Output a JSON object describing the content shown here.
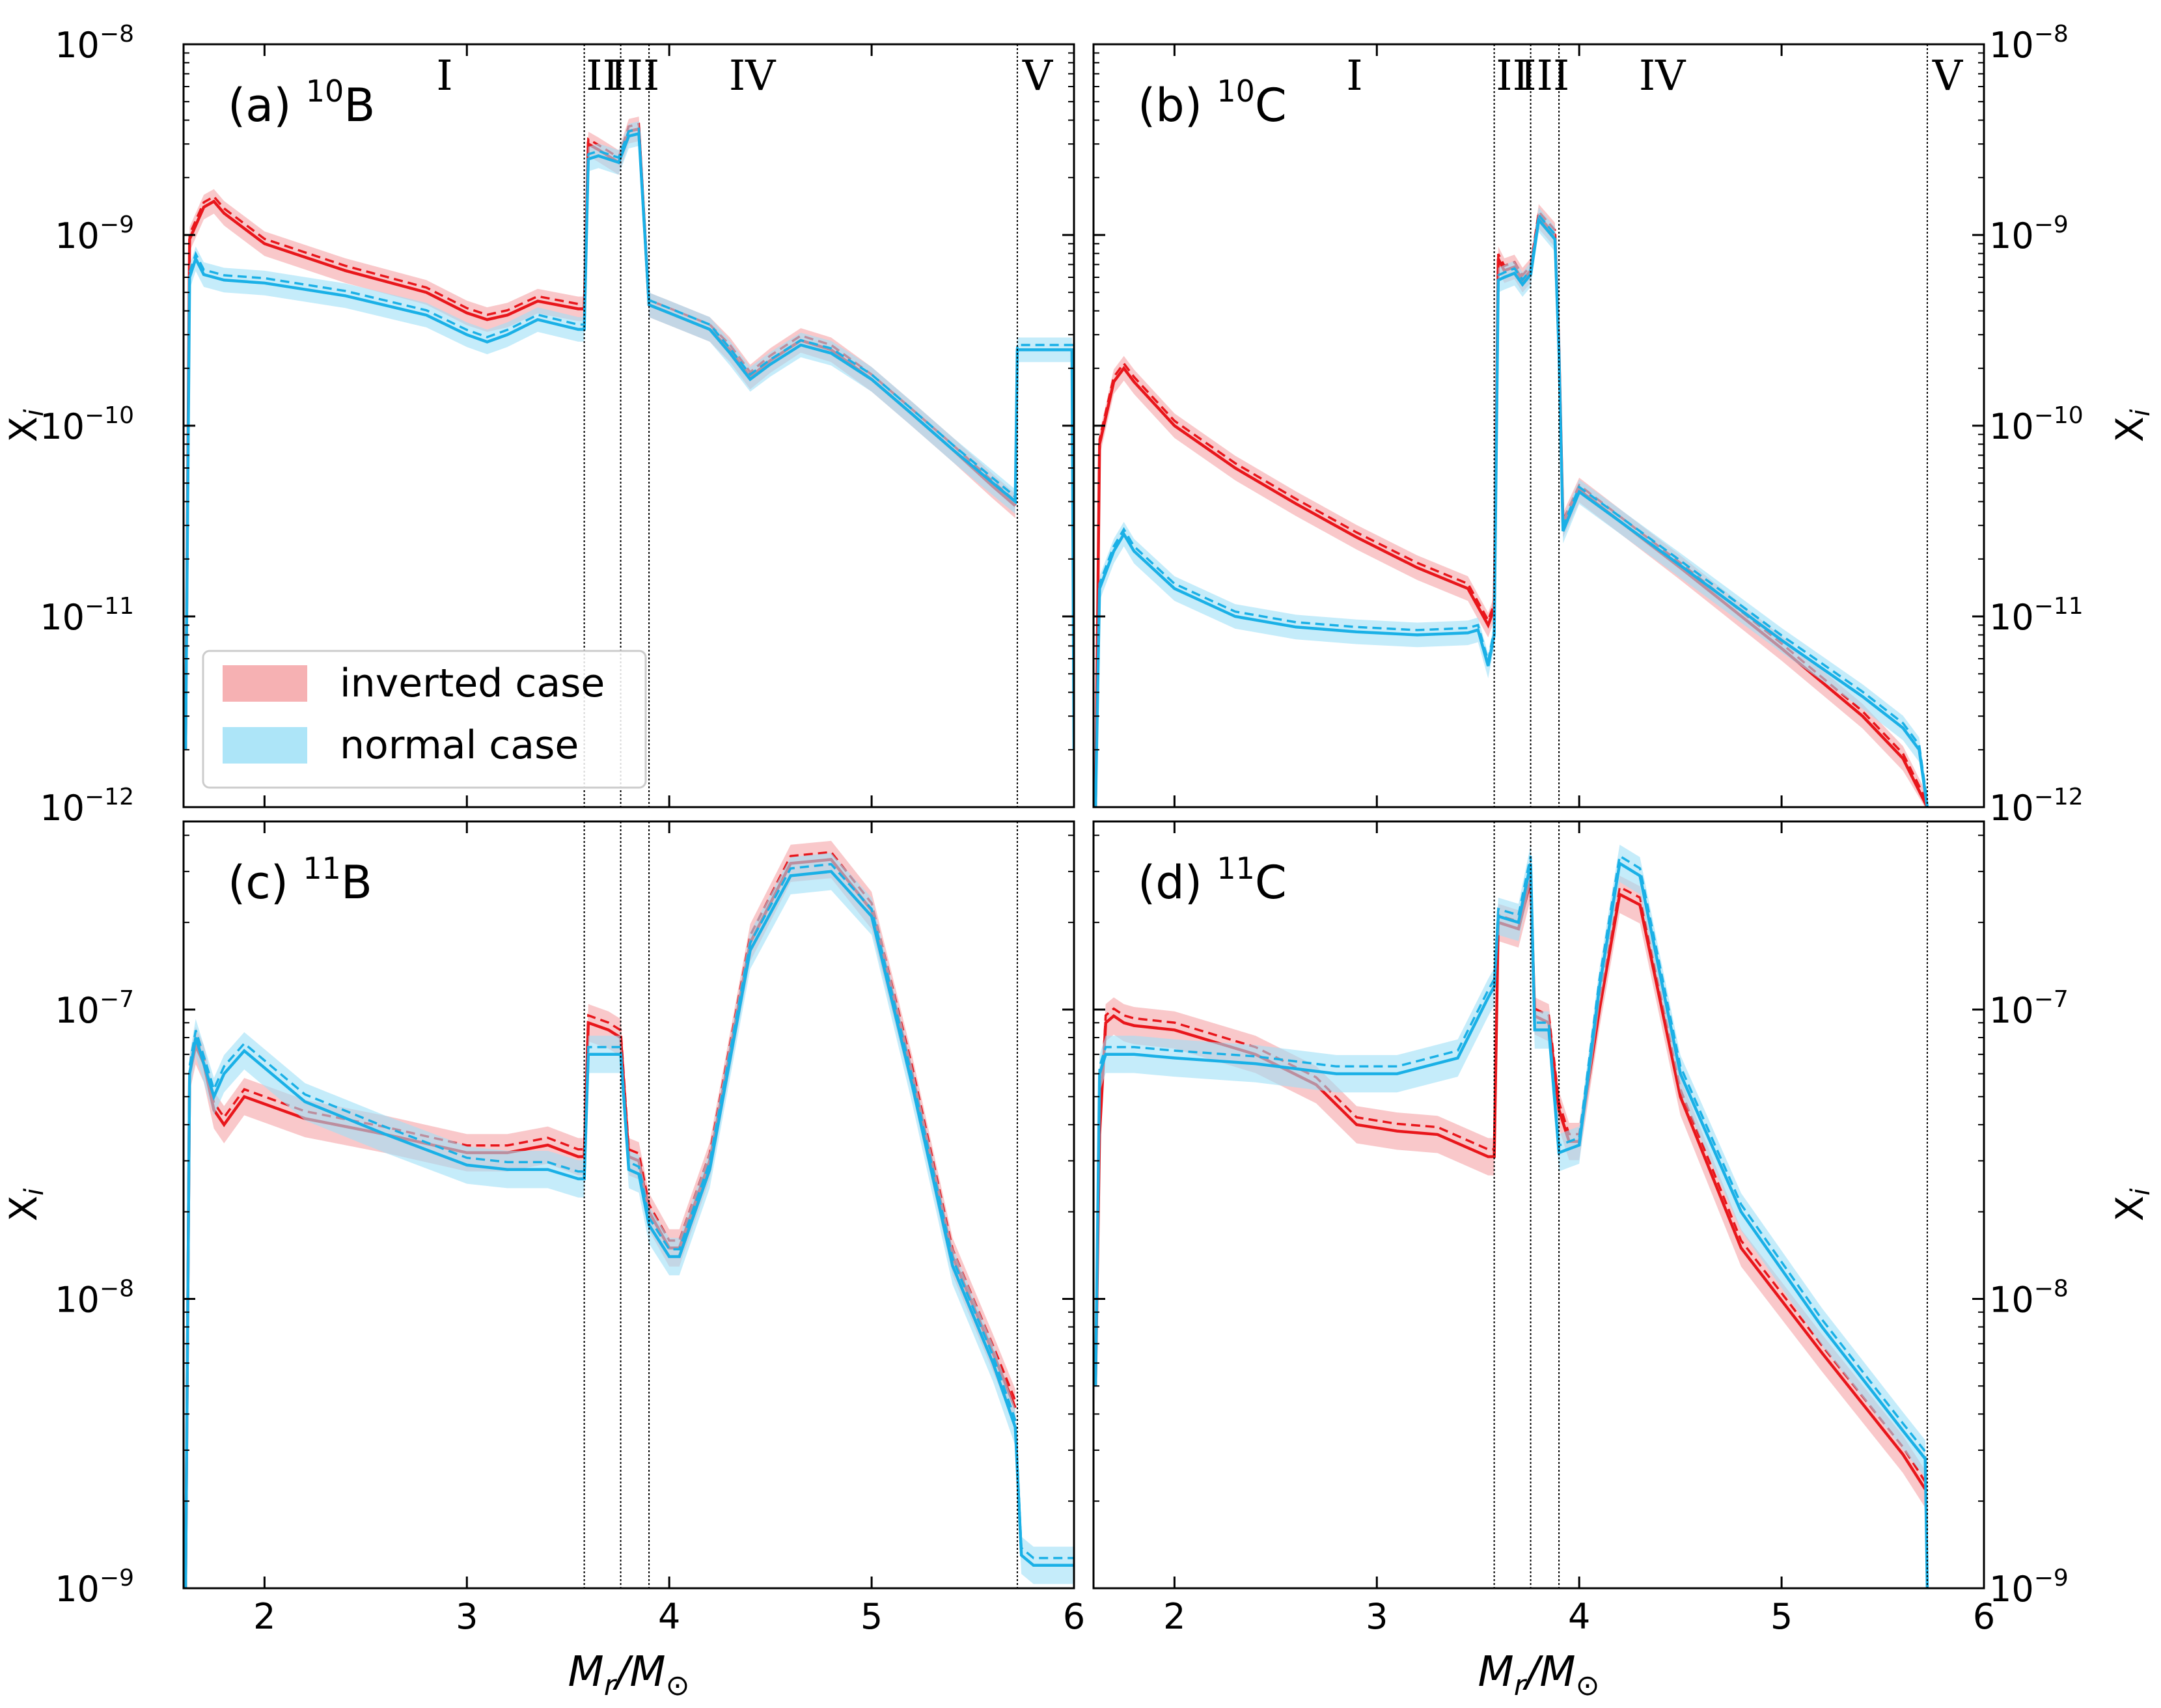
{
  "figure": {
    "xlabel": "M_r/M_⊙",
    "ylabel": "X_i",
    "legend": [
      {
        "label": "inverted case",
        "color": "#e8161b",
        "band": "#f5a3a6"
      },
      {
        "label": "normal case",
        "color": "#1ab0e6",
        "band": "#9fe0f7"
      }
    ],
    "region_labels": [
      "I",
      "II",
      "III",
      "IV",
      "V"
    ],
    "boundaries": [
      3.58,
      3.76,
      3.9,
      5.72
    ],
    "xticks": [
      2,
      3,
      4,
      5,
      6
    ]
  },
  "chart_data": [
    {
      "type": "line",
      "panel_label": "(a)",
      "isotope_mass": "10",
      "isotope_symbol": "B",
      "xlim": [
        1.6,
        6
      ],
      "ylim_log10": [
        -12,
        -8
      ],
      "yscale": "log",
      "yticks": [
        {
          "base": "10",
          "exp": "−8"
        },
        {
          "base": "10",
          "exp": "−9"
        },
        {
          "base": "10",
          "exp": "−10"
        },
        {
          "base": "10",
          "exp": "−11"
        },
        {
          "base": "10",
          "exp": "−12"
        }
      ],
      "legend": "lower-left",
      "series": [
        {
          "name": "inverted case",
          "x": [
            1.61,
            1.63,
            1.7,
            1.75,
            1.8,
            2.0,
            2.4,
            2.8,
            3.0,
            3.1,
            3.2,
            3.35,
            3.55,
            3.58,
            3.6,
            3.65,
            3.75,
            3.8,
            3.85,
            3.9,
            4.0,
            4.2,
            4.3,
            4.4,
            4.5,
            4.65,
            4.8,
            5.0,
            5.2,
            5.4,
            5.6,
            5.71
          ],
          "y": [
            2e-12,
            9.5e-10,
            1.4e-09,
            1.5e-09,
            1.3e-09,
            9e-10,
            6.5e-10,
            5e-10,
            3.9e-10,
            3.6e-10,
            3.8e-10,
            4.5e-10,
            4.1e-10,
            4.1e-10,
            3e-09,
            2.8e-09,
            2.4e-09,
            3.5e-09,
            3.6e-09,
            4.3e-10,
            3.9e-10,
            3.2e-10,
            2.5e-10,
            1.8e-10,
            2.2e-10,
            2.8e-10,
            2.5e-10,
            1.75e-10,
            1.15e-10,
            7.5e-11,
            4.8e-11,
            3.8e-11
          ]
        },
        {
          "name": "normal case",
          "x": [
            1.61,
            1.63,
            1.66,
            1.7,
            1.8,
            2.0,
            2.4,
            2.8,
            3.0,
            3.1,
            3.2,
            3.35,
            3.55,
            3.58,
            3.6,
            3.65,
            3.75,
            3.8,
            3.85,
            3.9,
            4.0,
            4.2,
            4.3,
            4.4,
            4.5,
            4.65,
            4.8,
            5.0,
            5.2,
            5.4,
            5.6,
            5.71,
            5.72,
            5.74,
            5.95,
            5.99,
            6.0
          ],
          "y": [
            2e-12,
            6e-10,
            7.5e-10,
            6.2e-10,
            5.8e-10,
            5.6e-10,
            4.8e-10,
            3.8e-10,
            3e-10,
            2.75e-10,
            3e-10,
            3.6e-10,
            3.2e-10,
            3.2e-10,
            2.5e-09,
            2.6e-09,
            2.4e-09,
            3.3e-09,
            3.4e-09,
            4.3e-10,
            3.9e-10,
            3.2e-10,
            2.4e-10,
            1.75e-10,
            2.1e-10,
            2.65e-10,
            2.4e-10,
            1.75e-10,
            1.15e-10,
            7.5e-11,
            5e-11,
            4e-11,
            2.5e-10,
            2.5e-10,
            2.5e-10,
            2.5e-10,
            2e-12
          ]
        }
      ]
    },
    {
      "type": "line",
      "panel_label": "(b)",
      "isotope_mass": "10",
      "isotope_symbol": "C",
      "xlim": [
        1.6,
        6
      ],
      "ylim_log10": [
        -12,
        -8
      ],
      "yscale": "log",
      "yticks": [
        {
          "base": "10",
          "exp": "−8"
        },
        {
          "base": "10",
          "exp": "−9"
        },
        {
          "base": "10",
          "exp": "−10"
        },
        {
          "base": "10",
          "exp": "−11"
        },
        {
          "base": "10",
          "exp": "−12"
        }
      ],
      "series": [
        {
          "name": "inverted case",
          "x": [
            1.61,
            1.63,
            1.7,
            1.75,
            1.8,
            2.0,
            2.3,
            2.6,
            2.9,
            3.2,
            3.45,
            3.55,
            3.58,
            3.6,
            3.63,
            3.68,
            3.72,
            3.76,
            3.8,
            3.83,
            3.88,
            3.9,
            3.92,
            4.0,
            4.5,
            5.0,
            5.4,
            5.6,
            5.72
          ],
          "y": [
            1e-12,
            8e-11,
            1.7e-10,
            2e-10,
            1.7e-10,
            1e-10,
            6e-11,
            3.9e-11,
            2.6e-11,
            1.8e-11,
            1.4e-11,
            9e-12,
            1.1e-11,
            7.5e-10,
            6.5e-10,
            6.8e-10,
            5.8e-10,
            6.5e-10,
            1.25e-09,
            1.15e-09,
            1e-09,
            2.5e-10,
            3e-11,
            4.6e-11,
            1.8e-11,
            6.8e-12,
            3e-12,
            1.8e-12,
            1e-12
          ]
        },
        {
          "name": "normal case",
          "x": [
            1.61,
            1.63,
            1.7,
            1.75,
            1.8,
            2.0,
            2.3,
            2.6,
            2.9,
            3.2,
            3.45,
            3.5,
            3.55,
            3.58,
            3.6,
            3.63,
            3.68,
            3.72,
            3.76,
            3.8,
            3.83,
            3.88,
            3.9,
            3.92,
            4.0,
            4.5,
            5.0,
            5.4,
            5.6,
            5.68,
            5.72
          ],
          "y": [
            1e-12,
            1.4e-11,
            2.2e-11,
            2.7e-11,
            2.2e-11,
            1.4e-11,
            1e-11,
            8.8e-12,
            8.3e-12,
            8e-12,
            8.2e-12,
            8.5e-12,
            5.5e-12,
            8e-12,
            5.8e-10,
            6e-10,
            6.3e-10,
            5.5e-10,
            6.2e-10,
            1.2e-09,
            1.1e-09,
            9.5e-10,
            2.4e-10,
            2.8e-11,
            4.5e-11,
            1.85e-11,
            7.5e-12,
            3.8e-12,
            2.6e-12,
            2e-12,
            1e-12
          ]
        }
      ]
    },
    {
      "type": "line",
      "panel_label": "(c)",
      "isotope_mass": "11",
      "isotope_symbol": "B",
      "xlim": [
        1.6,
        6
      ],
      "ylim_log10": [
        -9,
        -6.35
      ],
      "yscale": "log",
      "yticks": [
        {
          "base": "10",
          "exp": "−7"
        },
        {
          "base": "10",
          "exp": "−8"
        },
        {
          "base": "10",
          "exp": "−9"
        }
      ],
      "series": [
        {
          "name": "inverted case",
          "x": [
            1.61,
            1.63,
            1.66,
            1.7,
            1.75,
            1.8,
            1.9,
            2.2,
            2.6,
            3.0,
            3.2,
            3.4,
            3.55,
            3.58,
            3.6,
            3.7,
            3.76,
            3.8,
            3.85,
            3.9,
            4.0,
            4.05,
            4.2,
            4.4,
            4.6,
            4.8,
            5.0,
            5.2,
            5.4,
            5.6,
            5.71
          ],
          "y": [
            1e-09,
            6e-08,
            7.5e-08,
            6.5e-08,
            4.5e-08,
            4e-08,
            5e-08,
            4.2e-08,
            3.7e-08,
            3.2e-08,
            3.2e-08,
            3.4e-08,
            3.1e-08,
            3.1e-08,
            9e-08,
            8.5e-08,
            8e-08,
            3.1e-08,
            3e-08,
            2e-08,
            1.5e-08,
            1.5e-08,
            3e-08,
            1.7e-07,
            3.2e-07,
            3.3e-07,
            2.2e-07,
            6e-08,
            1.4e-08,
            6.5e-09,
            4.2e-09
          ]
        },
        {
          "name": "normal case",
          "x": [
            1.61,
            1.63,
            1.66,
            1.7,
            1.75,
            1.8,
            1.9,
            2.2,
            2.6,
            3.0,
            3.2,
            3.4,
            3.55,
            3.58,
            3.6,
            3.7,
            3.76,
            3.8,
            3.85,
            3.9,
            4.0,
            4.05,
            4.2,
            4.4,
            4.6,
            4.8,
            5.0,
            5.2,
            5.4,
            5.6,
            5.71,
            5.74,
            5.8,
            6.0
          ],
          "y": [
            1e-09,
            6e-08,
            8e-08,
            6.5e-08,
            5e-08,
            6e-08,
            7.2e-08,
            4.8e-08,
            3.7e-08,
            2.9e-08,
            2.8e-08,
            2.8e-08,
            2.6e-08,
            2.6e-08,
            7e-08,
            7e-08,
            7e-08,
            2.8e-08,
            2.7e-08,
            1.8e-08,
            1.4e-08,
            1.4e-08,
            2.8e-08,
            1.6e-07,
            2.9e-07,
            3e-07,
            2.1e-07,
            5.5e-08,
            1.3e-08,
            6e-09,
            3.6e-09,
            1.3e-09,
            1.2e-09,
            1.2e-09
          ]
        }
      ]
    },
    {
      "type": "line",
      "panel_label": "(d)",
      "isotope_mass": "11",
      "isotope_symbol": "C",
      "xlim": [
        1.6,
        6
      ],
      "ylim_log10": [
        -9,
        -6.35
      ],
      "yscale": "log",
      "yticks": [
        {
          "base": "10",
          "exp": "−7"
        },
        {
          "base": "10",
          "exp": "−8"
        },
        {
          "base": "10",
          "exp": "−9"
        }
      ],
      "series": [
        {
          "name": "inverted case",
          "x": [
            1.61,
            1.63,
            1.66,
            1.7,
            1.75,
            1.8,
            2.0,
            2.4,
            2.7,
            2.9,
            3.1,
            3.3,
            3.55,
            3.58,
            3.6,
            3.7,
            3.76,
            3.78,
            3.85,
            3.9,
            3.95,
            4.0,
            4.1,
            4.2,
            4.3,
            4.5,
            4.8,
            5.2,
            5.6,
            5.71
          ],
          "y": [
            5e-09,
            3.7e-08,
            9e-08,
            9.5e-08,
            9e-08,
            8.8e-08,
            8.5e-08,
            7e-08,
            5.5e-08,
            4e-08,
            3.8e-08,
            3.7e-08,
            3.1e-08,
            3.1e-08,
            2e-07,
            1.9e-07,
            2.8e-07,
            9.5e-08,
            9e-08,
            4.5e-08,
            3.5e-08,
            3.5e-08,
            1e-07,
            2.5e-07,
            2.3e-07,
            5e-08,
            1.5e-08,
            6.5e-09,
            2.9e-09,
            2.2e-09
          ]
        },
        {
          "name": "normal case",
          "x": [
            1.61,
            1.63,
            1.66,
            1.7,
            1.8,
            2.0,
            2.4,
            2.8,
            3.1,
            3.4,
            3.55,
            3.58,
            3.6,
            3.7,
            3.76,
            3.78,
            3.85,
            3.9,
            3.95,
            4.0,
            4.1,
            4.2,
            4.3,
            4.5,
            4.8,
            5.2,
            5.6,
            5.71,
            5.72
          ],
          "y": [
            5e-09,
            6e-08,
            7e-08,
            7e-08,
            7e-08,
            6.8e-08,
            6.5e-08,
            6e-08,
            6e-08,
            6.8e-08,
            1.1e-07,
            1.2e-07,
            2.1e-07,
            2e-07,
            3.2e-07,
            8.5e-08,
            8.5e-08,
            3.2e-08,
            3.3e-08,
            3.4e-08,
            1.2e-07,
            3.2e-07,
            2.9e-07,
            6e-08,
            2e-08,
            8e-09,
            3.5e-09,
            2.8e-09,
            1e-09
          ]
        }
      ]
    }
  ]
}
